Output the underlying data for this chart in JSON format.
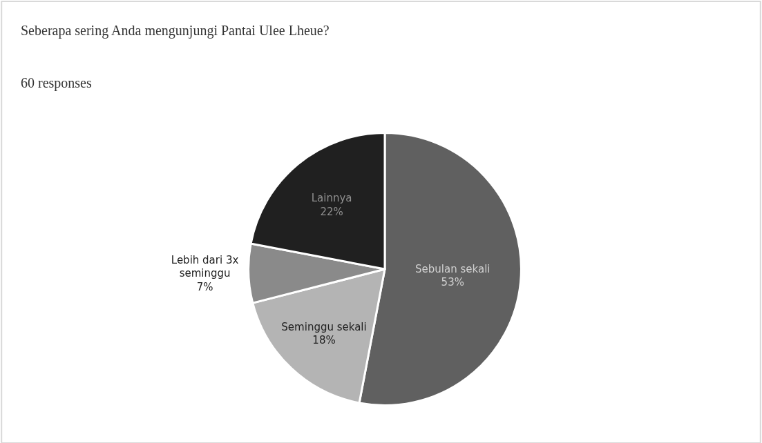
{
  "chart_data": {
    "type": "pie",
    "title": "Seberapa sering Anda mengunjungi Pantai Ulee Lheue?",
    "subtitle": "60 responses",
    "categories": [
      "Sebulan sekali",
      "Seminggu sekali",
      "Lebih dari 3x seminggu",
      "Lainnya"
    ],
    "values": [
      53,
      18,
      7,
      22
    ],
    "value_labels": [
      "53%",
      "18%",
      "7%",
      "22%"
    ],
    "colors": [
      "#606060",
      "#b4b4b4",
      "#8a8a8a",
      "#202020"
    ]
  }
}
